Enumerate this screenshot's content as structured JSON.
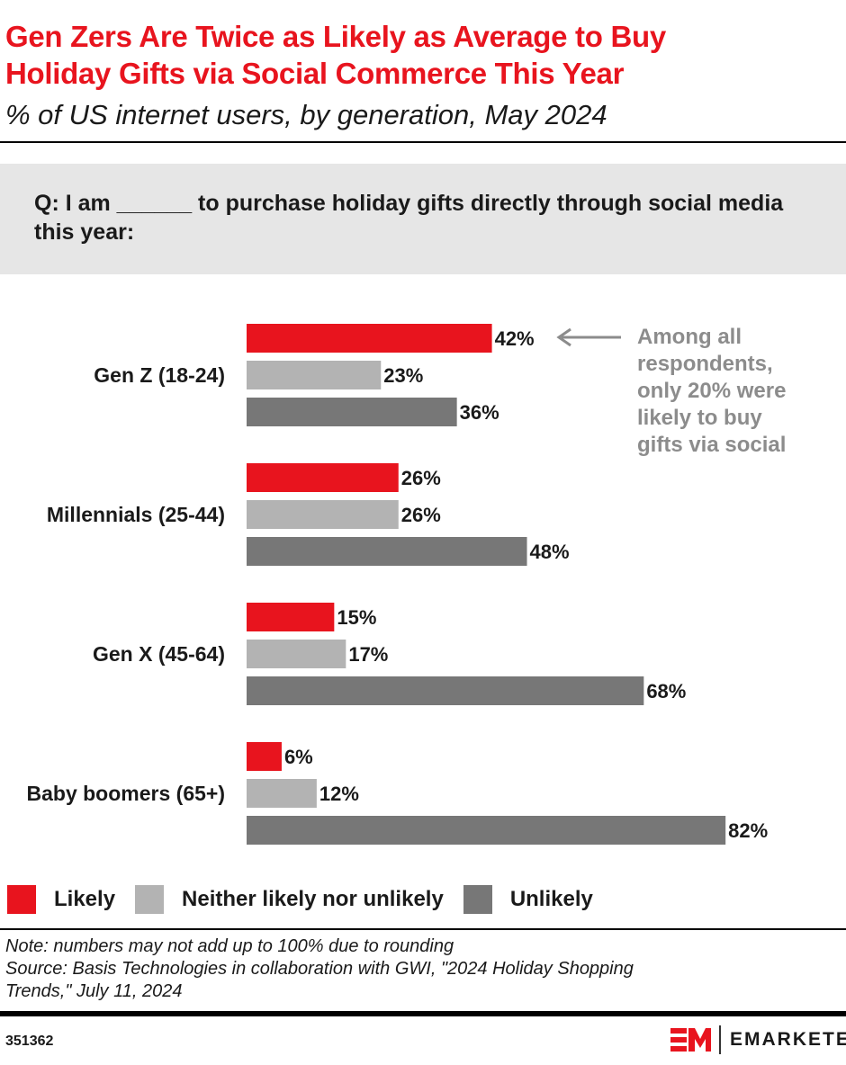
{
  "header": {
    "title_line1": "Gen Zers Are Twice as Likely as Average to Buy",
    "title_line2": "Holiday Gifts via Social Commerce This Year",
    "subtitle": "% of US internet users, by generation, May 2024"
  },
  "question": "Q: I am ______ to purchase holiday gifts directly through social media this year:",
  "chart_data": {
    "type": "bar",
    "orientation": "horizontal",
    "categories": [
      "Gen Z (18-24)",
      "Millennials (25-44)",
      "Gen X (45-64)",
      "Baby boomers (65+)"
    ],
    "series": [
      {
        "name": "Likely",
        "values": [
          42,
          26,
          15,
          6
        ],
        "color": "#e8141e"
      },
      {
        "name": "Neither likely nor unlikely",
        "values": [
          23,
          26,
          17,
          12
        ],
        "color": "#b3b3b3"
      },
      {
        "name": "Unlikely",
        "values": [
          36,
          48,
          68,
          82
        ],
        "color": "#777777"
      }
    ],
    "value_suffix": "%",
    "xlim": [
      0,
      100
    ],
    "grid": false,
    "legend_placement": "bottom",
    "annotation": {
      "lines": [
        "Among all",
        "respondents,",
        "only 20% were",
        "likely to buy",
        "gifts via social"
      ],
      "color": "#8c8c8c"
    }
  },
  "footer": {
    "note": "Note: numbers may not add up to 100% due to rounding",
    "source_line1": "Source: Basis Technologies in collaboration with GWI, \"2024 Holiday Shopping",
    "source_line2": "Trends,\" July 11, 2024",
    "chart_id": "351362",
    "brand": "EMARKETER",
    "brand_color": "#e8141e"
  }
}
